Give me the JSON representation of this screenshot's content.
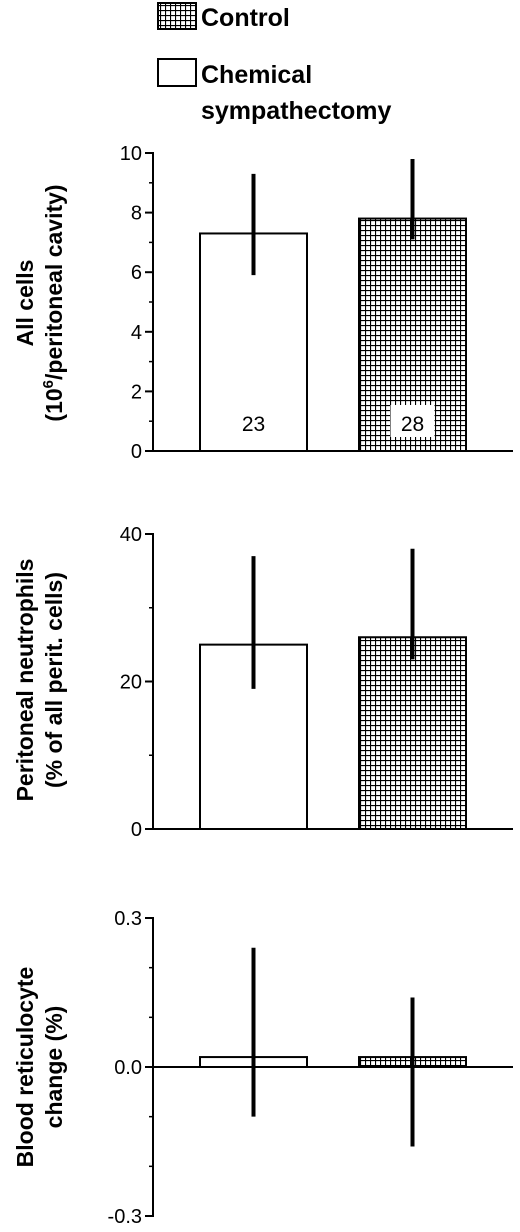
{
  "legend": {
    "items": [
      {
        "label": "Control",
        "pattern": "grid"
      },
      {
        "label": "Chemical sympathectomy",
        "label_lines": [
          "Chemical",
          "sympathectomy"
        ],
        "pattern": "white"
      }
    ]
  },
  "chart_data": [
    {
      "type": "bar",
      "ylabel_lines": [
        "All cells",
        "(10^6/peritoneal cavity)"
      ],
      "ylabel_line1": "All cells",
      "ylabel_line2_pre": "(10",
      "ylabel_line2_sup": "6",
      "ylabel_line2_post": "/peritoneal cavity)",
      "ylim": [
        0,
        10
      ],
      "ticks": [
        0,
        2,
        4,
        6,
        8,
        10
      ],
      "tick_labels": [
        "0",
        "2",
        "4",
        "6",
        "8",
        "10"
      ],
      "minor_ticks": [
        1,
        3,
        5,
        7,
        9
      ],
      "series": [
        {
          "name": "Chemical sympathectomy",
          "pattern": "white",
          "value": 7.3,
          "err_low": 5.9,
          "err_high": 9.3,
          "n_label": "23"
        },
        {
          "name": "Control",
          "pattern": "grid",
          "value": 7.8,
          "err_low": 7.1,
          "err_high": 9.8,
          "n_label": "28"
        }
      ]
    },
    {
      "type": "bar",
      "ylabel_lines": [
        "Peritoneal neutrophils",
        "(% of all perit. cells)"
      ],
      "ylim": [
        0,
        40
      ],
      "ticks": [
        0,
        20,
        40
      ],
      "tick_labels": [
        "0",
        "20",
        "40"
      ],
      "minor_ticks": [
        10,
        30
      ],
      "series": [
        {
          "name": "Chemical sympathectomy",
          "pattern": "white",
          "value": 25,
          "err_low": 19,
          "err_high": 37
        },
        {
          "name": "Control",
          "pattern": "grid",
          "value": 26,
          "err_low": 23,
          "err_high": 38
        }
      ]
    },
    {
      "type": "bar",
      "ylabel_lines": [
        "Blood reticulocyte",
        "change (%)"
      ],
      "ylim": [
        -0.3,
        0.3
      ],
      "ticks": [
        -0.3,
        0.0,
        0.3
      ],
      "tick_labels": [
        "-0.3",
        "0.0",
        "0.3"
      ],
      "minor_ticks": [
        -0.2,
        -0.1,
        0.1,
        0.2
      ],
      "series": [
        {
          "name": "Chemical sympathectomy",
          "pattern": "white",
          "value": 0.02,
          "err_low": -0.1,
          "err_high": 0.24
        },
        {
          "name": "Control",
          "pattern": "grid",
          "value": 0.02,
          "err_low": -0.16,
          "err_high": 0.14
        }
      ]
    }
  ]
}
